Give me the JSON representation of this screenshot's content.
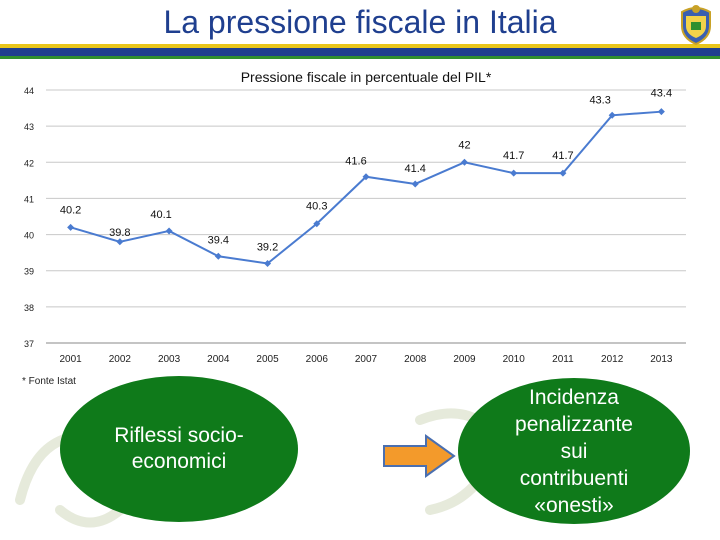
{
  "slide": {
    "title": "La pressione fiscale in Italia",
    "source_note": "* Fonte Istat",
    "left_bubble": "Riflessi socio-economici",
    "right_bubble": "Incidenza penalizzante sui contribuenti «onesti»",
    "colors": {
      "title": "#1f3f8f",
      "band_blue": "#1f3f8f",
      "band_yellow": "#e8c51a",
      "bubble_green": "#0f7a1a",
      "arrow_orange": "#f39a2b"
    }
  },
  "chart_data": {
    "type": "line",
    "title": "Pressione fiscale in percentuale del PIL*",
    "categories": [
      "2001",
      "2002",
      "2003",
      "2004",
      "2005",
      "2006",
      "2007",
      "2008",
      "2009",
      "2010",
      "2011",
      "2012",
      "2013"
    ],
    "x": [
      2001,
      2002,
      2003,
      2004,
      2005,
      2006,
      2007,
      2008,
      2009,
      2010,
      2011,
      2012,
      2013
    ],
    "series": [
      {
        "name": "",
        "values": [
          40.2,
          39.8,
          40.1,
          39.4,
          39.2,
          40.3,
          41.6,
          41.4,
          42,
          41.7,
          41.7,
          43.3,
          43.4
        ]
      }
    ],
    "data_labels": [
      "40.2",
      "39.8",
      "40.1",
      "39.4",
      "39.2",
      "40.3",
      "41.6",
      "41.4",
      "42",
      "41.7",
      "41.7",
      "43.3",
      "43.4"
    ],
    "y_ticks": [
      "37",
      "38",
      "39",
      "40",
      "41",
      "42",
      "43",
      "44"
    ],
    "ylim": [
      37,
      44
    ],
    "xlabel": "",
    "ylabel": "",
    "grid": true,
    "line_color": "#4a7bd0"
  }
}
